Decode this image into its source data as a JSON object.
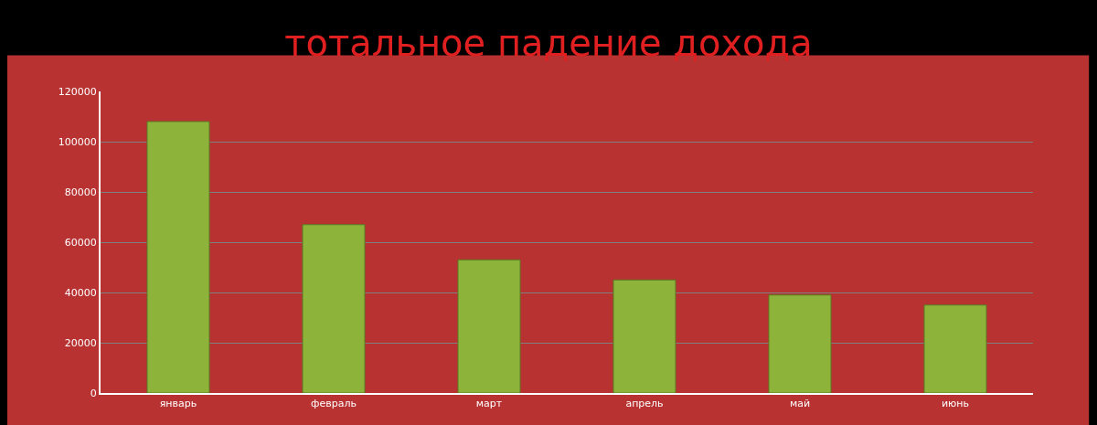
{
  "chart_data": {
    "type": "bar",
    "title": "тотальное падение дохода",
    "categories": [
      "январь",
      "февраль",
      "март",
      "апрель",
      "май",
      "июнь"
    ],
    "values": [
      108000,
      67000,
      53000,
      45000,
      39000,
      35000
    ],
    "color": "#8db33a",
    "ylim": [
      0,
      120000
    ],
    "yticks": [
      0,
      20000,
      40000,
      60000,
      80000,
      100000,
      120000
    ],
    "grid": "y"
  }
}
